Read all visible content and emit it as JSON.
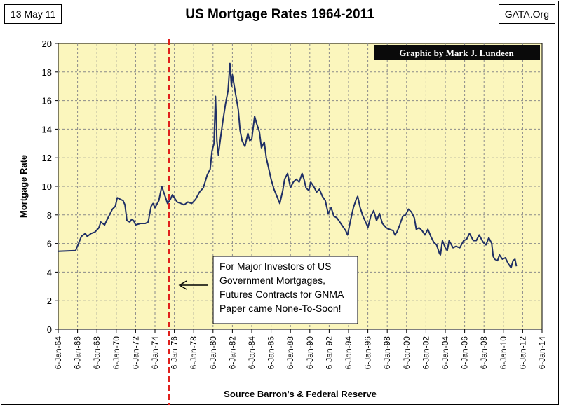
{
  "header": {
    "date": "13 May 11",
    "title": "US Mortgage Rates 1964-2011",
    "site": "GATA.Org"
  },
  "chart_data": {
    "type": "line",
    "title": "US Mortgage Rates 1964-2011",
    "xlabel": "Source Barron's & Federal Reserve",
    "ylabel": "Mortgage Rate",
    "ylim": [
      0,
      20
    ],
    "yticks": [
      0,
      2,
      4,
      6,
      8,
      10,
      12,
      14,
      16,
      18,
      20
    ],
    "xlim": [
      1964,
      2014
    ],
    "xticks": [
      {
        "year": 1964,
        "label": "6-Jan-64"
      },
      {
        "year": 1966,
        "label": "6-Jan-66"
      },
      {
        "year": 1968,
        "label": "6-Jan-68"
      },
      {
        "year": 1970,
        "label": "6-Jan-70"
      },
      {
        "year": 1972,
        "label": "6-Jan-72"
      },
      {
        "year": 1974,
        "label": "6-Jan-74"
      },
      {
        "year": 1976,
        "label": "6-Jan-76"
      },
      {
        "year": 1978,
        "label": "6-Jan-78"
      },
      {
        "year": 1980,
        "label": "6-Jan-80"
      },
      {
        "year": 1982,
        "label": "6-Jan-82"
      },
      {
        "year": 1984,
        "label": "6-Jan-84"
      },
      {
        "year": 1986,
        "label": "6-Jan-86"
      },
      {
        "year": 1988,
        "label": "6-Jan-88"
      },
      {
        "year": 1990,
        "label": "6-Jan-90"
      },
      {
        "year": 1992,
        "label": "6-Jan-92"
      },
      {
        "year": 1994,
        "label": "6-Jan-94"
      },
      {
        "year": 1996,
        "label": "6-Jan-96"
      },
      {
        "year": 1998,
        "label": "6-Jan-98"
      },
      {
        "year": 2000,
        "label": "6-Jan-00"
      },
      {
        "year": 2002,
        "label": "6-Jan-02"
      },
      {
        "year": 2004,
        "label": "6-Jan-04"
      },
      {
        "year": 2006,
        "label": "6-Jan-06"
      },
      {
        "year": 2008,
        "label": "6-Jan-08"
      },
      {
        "year": 2010,
        "label": "6-Jan-10"
      },
      {
        "year": 2012,
        "label": "6-Jan-12"
      },
      {
        "year": 2014,
        "label": "6-Jan-14"
      }
    ],
    "series": [
      {
        "name": "US Mortgage Rate",
        "color": "#1f2f66",
        "points": [
          [
            1964.0,
            5.45
          ],
          [
            1965.8,
            5.5
          ],
          [
            1966.1,
            6.0
          ],
          [
            1966.4,
            6.5
          ],
          [
            1966.8,
            6.7
          ],
          [
            1967.0,
            6.5
          ],
          [
            1967.4,
            6.7
          ],
          [
            1967.8,
            6.8
          ],
          [
            1968.2,
            7.1
          ],
          [
            1968.4,
            7.5
          ],
          [
            1968.8,
            7.3
          ],
          [
            1969.0,
            7.6
          ],
          [
            1969.3,
            8.0
          ],
          [
            1969.6,
            8.4
          ],
          [
            1969.9,
            8.6
          ],
          [
            1970.1,
            9.2
          ],
          [
            1970.4,
            9.1
          ],
          [
            1970.7,
            9.0
          ],
          [
            1970.9,
            8.7
          ],
          [
            1971.1,
            7.6
          ],
          [
            1971.4,
            7.5
          ],
          [
            1971.6,
            7.7
          ],
          [
            1971.8,
            7.6
          ],
          [
            1972.0,
            7.3
          ],
          [
            1972.5,
            7.4
          ],
          [
            1973.0,
            7.4
          ],
          [
            1973.3,
            7.5
          ],
          [
            1973.6,
            8.6
          ],
          [
            1973.8,
            8.8
          ],
          [
            1974.0,
            8.5
          ],
          [
            1974.4,
            9.0
          ],
          [
            1974.7,
            10.0
          ],
          [
            1974.9,
            9.6
          ],
          [
            1975.1,
            9.2
          ],
          [
            1975.3,
            8.8
          ],
          [
            1975.6,
            9.1
          ],
          [
            1975.8,
            9.4
          ],
          [
            1976.0,
            9.2
          ],
          [
            1976.3,
            8.9
          ],
          [
            1976.7,
            8.8
          ],
          [
            1977.0,
            8.7
          ],
          [
            1977.4,
            8.9
          ],
          [
            1977.8,
            8.8
          ],
          [
            1978.2,
            9.1
          ],
          [
            1978.6,
            9.6
          ],
          [
            1979.0,
            9.9
          ],
          [
            1979.4,
            10.8
          ],
          [
            1979.7,
            11.2
          ],
          [
            1979.9,
            12.5
          ],
          [
            1980.1,
            13.0
          ],
          [
            1980.25,
            16.3
          ],
          [
            1980.4,
            13.2
          ],
          [
            1980.55,
            12.2
          ],
          [
            1980.8,
            13.5
          ],
          [
            1981.0,
            14.5
          ],
          [
            1981.3,
            15.8
          ],
          [
            1981.55,
            16.7
          ],
          [
            1981.75,
            18.6
          ],
          [
            1981.9,
            17.0
          ],
          [
            1982.0,
            17.8
          ],
          [
            1982.3,
            16.6
          ],
          [
            1982.6,
            15.4
          ],
          [
            1982.8,
            13.9
          ],
          [
            1983.0,
            13.2
          ],
          [
            1983.3,
            12.8
          ],
          [
            1983.6,
            13.7
          ],
          [
            1983.8,
            13.2
          ],
          [
            1984.0,
            13.3
          ],
          [
            1984.3,
            14.9
          ],
          [
            1984.5,
            14.4
          ],
          [
            1984.8,
            13.8
          ],
          [
            1985.0,
            12.7
          ],
          [
            1985.3,
            13.1
          ],
          [
            1985.5,
            12.0
          ],
          [
            1985.7,
            11.4
          ],
          [
            1986.0,
            10.5
          ],
          [
            1986.3,
            9.8
          ],
          [
            1986.6,
            9.3
          ],
          [
            1986.9,
            8.8
          ],
          [
            1987.2,
            9.7
          ],
          [
            1987.4,
            10.5
          ],
          [
            1987.7,
            10.9
          ],
          [
            1988.0,
            9.9
          ],
          [
            1988.3,
            10.3
          ],
          [
            1988.6,
            10.5
          ],
          [
            1988.9,
            10.3
          ],
          [
            1989.2,
            10.9
          ],
          [
            1989.4,
            10.5
          ],
          [
            1989.6,
            9.9
          ],
          [
            1989.9,
            9.7
          ],
          [
            1990.1,
            10.3
          ],
          [
            1990.4,
            10.0
          ],
          [
            1990.7,
            9.6
          ],
          [
            1991.0,
            9.8
          ],
          [
            1991.3,
            9.3
          ],
          [
            1991.6,
            9.0
          ],
          [
            1991.9,
            8.1
          ],
          [
            1992.2,
            8.5
          ],
          [
            1992.5,
            7.9
          ],
          [
            1992.8,
            7.8
          ],
          [
            1993.1,
            7.5
          ],
          [
            1993.4,
            7.2
          ],
          [
            1993.7,
            6.9
          ],
          [
            1993.9,
            6.6
          ],
          [
            1994.2,
            7.6
          ],
          [
            1994.5,
            8.5
          ],
          [
            1994.8,
            9.1
          ],
          [
            1994.95,
            9.3
          ],
          [
            1995.2,
            8.5
          ],
          [
            1995.5,
            7.9
          ],
          [
            1995.9,
            7.3
          ],
          [
            1996.0,
            7.1
          ],
          [
            1996.3,
            7.9
          ],
          [
            1996.6,
            8.3
          ],
          [
            1996.9,
            7.6
          ],
          [
            1997.2,
            8.1
          ],
          [
            1997.5,
            7.4
          ],
          [
            1997.9,
            7.1
          ],
          [
            1998.2,
            7.0
          ],
          [
            1998.6,
            6.9
          ],
          [
            1998.8,
            6.6
          ],
          [
            1999.0,
            6.8
          ],
          [
            1999.3,
            7.3
          ],
          [
            1999.6,
            7.9
          ],
          [
            1999.9,
            8.0
          ],
          [
            2000.2,
            8.4
          ],
          [
            2000.5,
            8.2
          ],
          [
            2000.8,
            7.8
          ],
          [
            2001.0,
            7.0
          ],
          [
            2001.3,
            7.1
          ],
          [
            2001.6,
            6.9
          ],
          [
            2001.9,
            6.6
          ],
          [
            2002.2,
            7.0
          ],
          [
            2002.5,
            6.5
          ],
          [
            2002.8,
            6.1
          ],
          [
            2003.1,
            5.9
          ],
          [
            2003.4,
            5.3
          ],
          [
            2003.5,
            5.2
          ],
          [
            2003.7,
            6.2
          ],
          [
            2004.0,
            5.7
          ],
          [
            2004.2,
            5.5
          ],
          [
            2004.4,
            6.2
          ],
          [
            2004.8,
            5.7
          ],
          [
            2005.1,
            5.8
          ],
          [
            2005.5,
            5.7
          ],
          [
            2005.9,
            6.2
          ],
          [
            2006.2,
            6.3
          ],
          [
            2006.5,
            6.7
          ],
          [
            2006.9,
            6.2
          ],
          [
            2007.2,
            6.2
          ],
          [
            2007.5,
            6.6
          ],
          [
            2007.9,
            6.1
          ],
          [
            2008.2,
            5.9
          ],
          [
            2008.5,
            6.4
          ],
          [
            2008.8,
            6.0
          ],
          [
            2008.95,
            5.1
          ],
          [
            2009.1,
            4.9
          ],
          [
            2009.4,
            4.8
          ],
          [
            2009.6,
            5.2
          ],
          [
            2009.9,
            4.9
          ],
          [
            2010.2,
            5.0
          ],
          [
            2010.5,
            4.6
          ],
          [
            2010.8,
            4.3
          ],
          [
            2011.0,
            4.8
          ],
          [
            2011.2,
            4.9
          ],
          [
            2011.35,
            4.4
          ]
        ]
      }
    ],
    "marker_line": {
      "year": 1975.45,
      "color": "#e0201c"
    },
    "credit": "Graphic by Mark J. Lundeen",
    "annotation": {
      "lines": [
        "For Major Investors of US",
        "Government Mortgages,",
        "Futures Contracts for GNMA",
        "Paper came None-To-Soon!"
      ]
    },
    "colors": {
      "plot_bg": "#fbf6bd",
      "grid": "#8a8a8a",
      "line": "#1f2f66"
    }
  }
}
